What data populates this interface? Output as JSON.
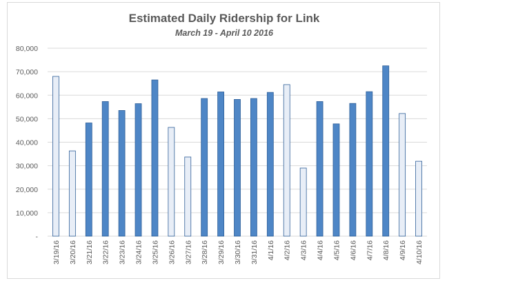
{
  "chart_data": {
    "type": "bar",
    "title": "Estimated Daily Ridership for Link",
    "subtitle": "March 19 - April 10 2016",
    "categories": [
      "3/19/16",
      "3/20/16",
      "3/21/16",
      "3/22/16",
      "3/23/16",
      "3/24/16",
      "3/25/16",
      "3/26/16",
      "3/27/16",
      "3/28/16",
      "3/29/16",
      "3/30/16",
      "3/31/16",
      "4/1/16",
      "4/2/16",
      "4/3/16",
      "4/4/16",
      "4/5/16",
      "4/6/16",
      "4/7/16",
      "4/8/16",
      "4/9/16",
      "4/10/16"
    ],
    "values": [
      68000,
      36300,
      48200,
      57300,
      53500,
      56400,
      66500,
      46300,
      33700,
      58600,
      61400,
      58200,
      58600,
      61200,
      64500,
      29000,
      57300,
      47800,
      56500,
      61500,
      72500,
      52200,
      31900
    ],
    "weekend": [
      true,
      true,
      false,
      false,
      false,
      false,
      false,
      true,
      true,
      false,
      false,
      false,
      false,
      false,
      true,
      true,
      false,
      false,
      false,
      false,
      false,
      true,
      true
    ],
    "ylim": [
      0,
      80000
    ],
    "yticks": [
      0,
      10000,
      20000,
      30000,
      40000,
      50000,
      60000,
      70000,
      80000
    ],
    "ytick_labels": [
      "-",
      "10,000",
      "20,000",
      "30,000",
      "40,000",
      "50,000",
      "60,000",
      "70,000",
      "80,000"
    ],
    "xlabel": "",
    "ylabel": "",
    "grid": true,
    "legend": "none",
    "colors": {
      "weekday_fill": "#4e86c6",
      "weekday_stroke": "#2f5f98",
      "weekend_fill": "#e8eef7",
      "weekend_stroke": "#2f5f98",
      "gridline": "#d9d9d9",
      "text": "#595959"
    }
  }
}
